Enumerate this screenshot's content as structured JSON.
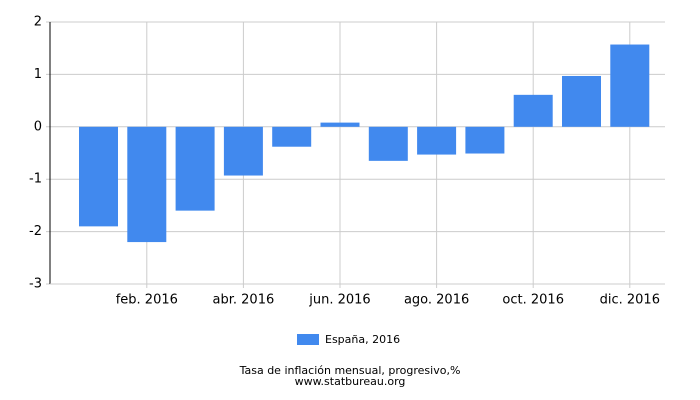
{
  "chart_data": {
    "type": "bar",
    "title": "Tasa de inflación mensual, progresivo,%",
    "subtitle": "www.statbureau.org",
    "categories": [
      null,
      "feb. 2016",
      null,
      "abr. 2016",
      null,
      "jun. 2016",
      null,
      "ago. 2016",
      null,
      "oct. 2016",
      null,
      "dic. 2016"
    ],
    "series": [
      {
        "name": "España, 2016",
        "color": "#4189ee",
        "values": [
          -1.9,
          -2.2,
          -1.6,
          -0.93,
          -0.38,
          0.08,
          -0.65,
          -0.53,
          -0.51,
          0.61,
          0.97,
          1.57
        ]
      }
    ],
    "ylim": [
      -3,
      2
    ],
    "yticks": [
      -3,
      -2,
      -1,
      0,
      1,
      2
    ],
    "grid": true
  }
}
